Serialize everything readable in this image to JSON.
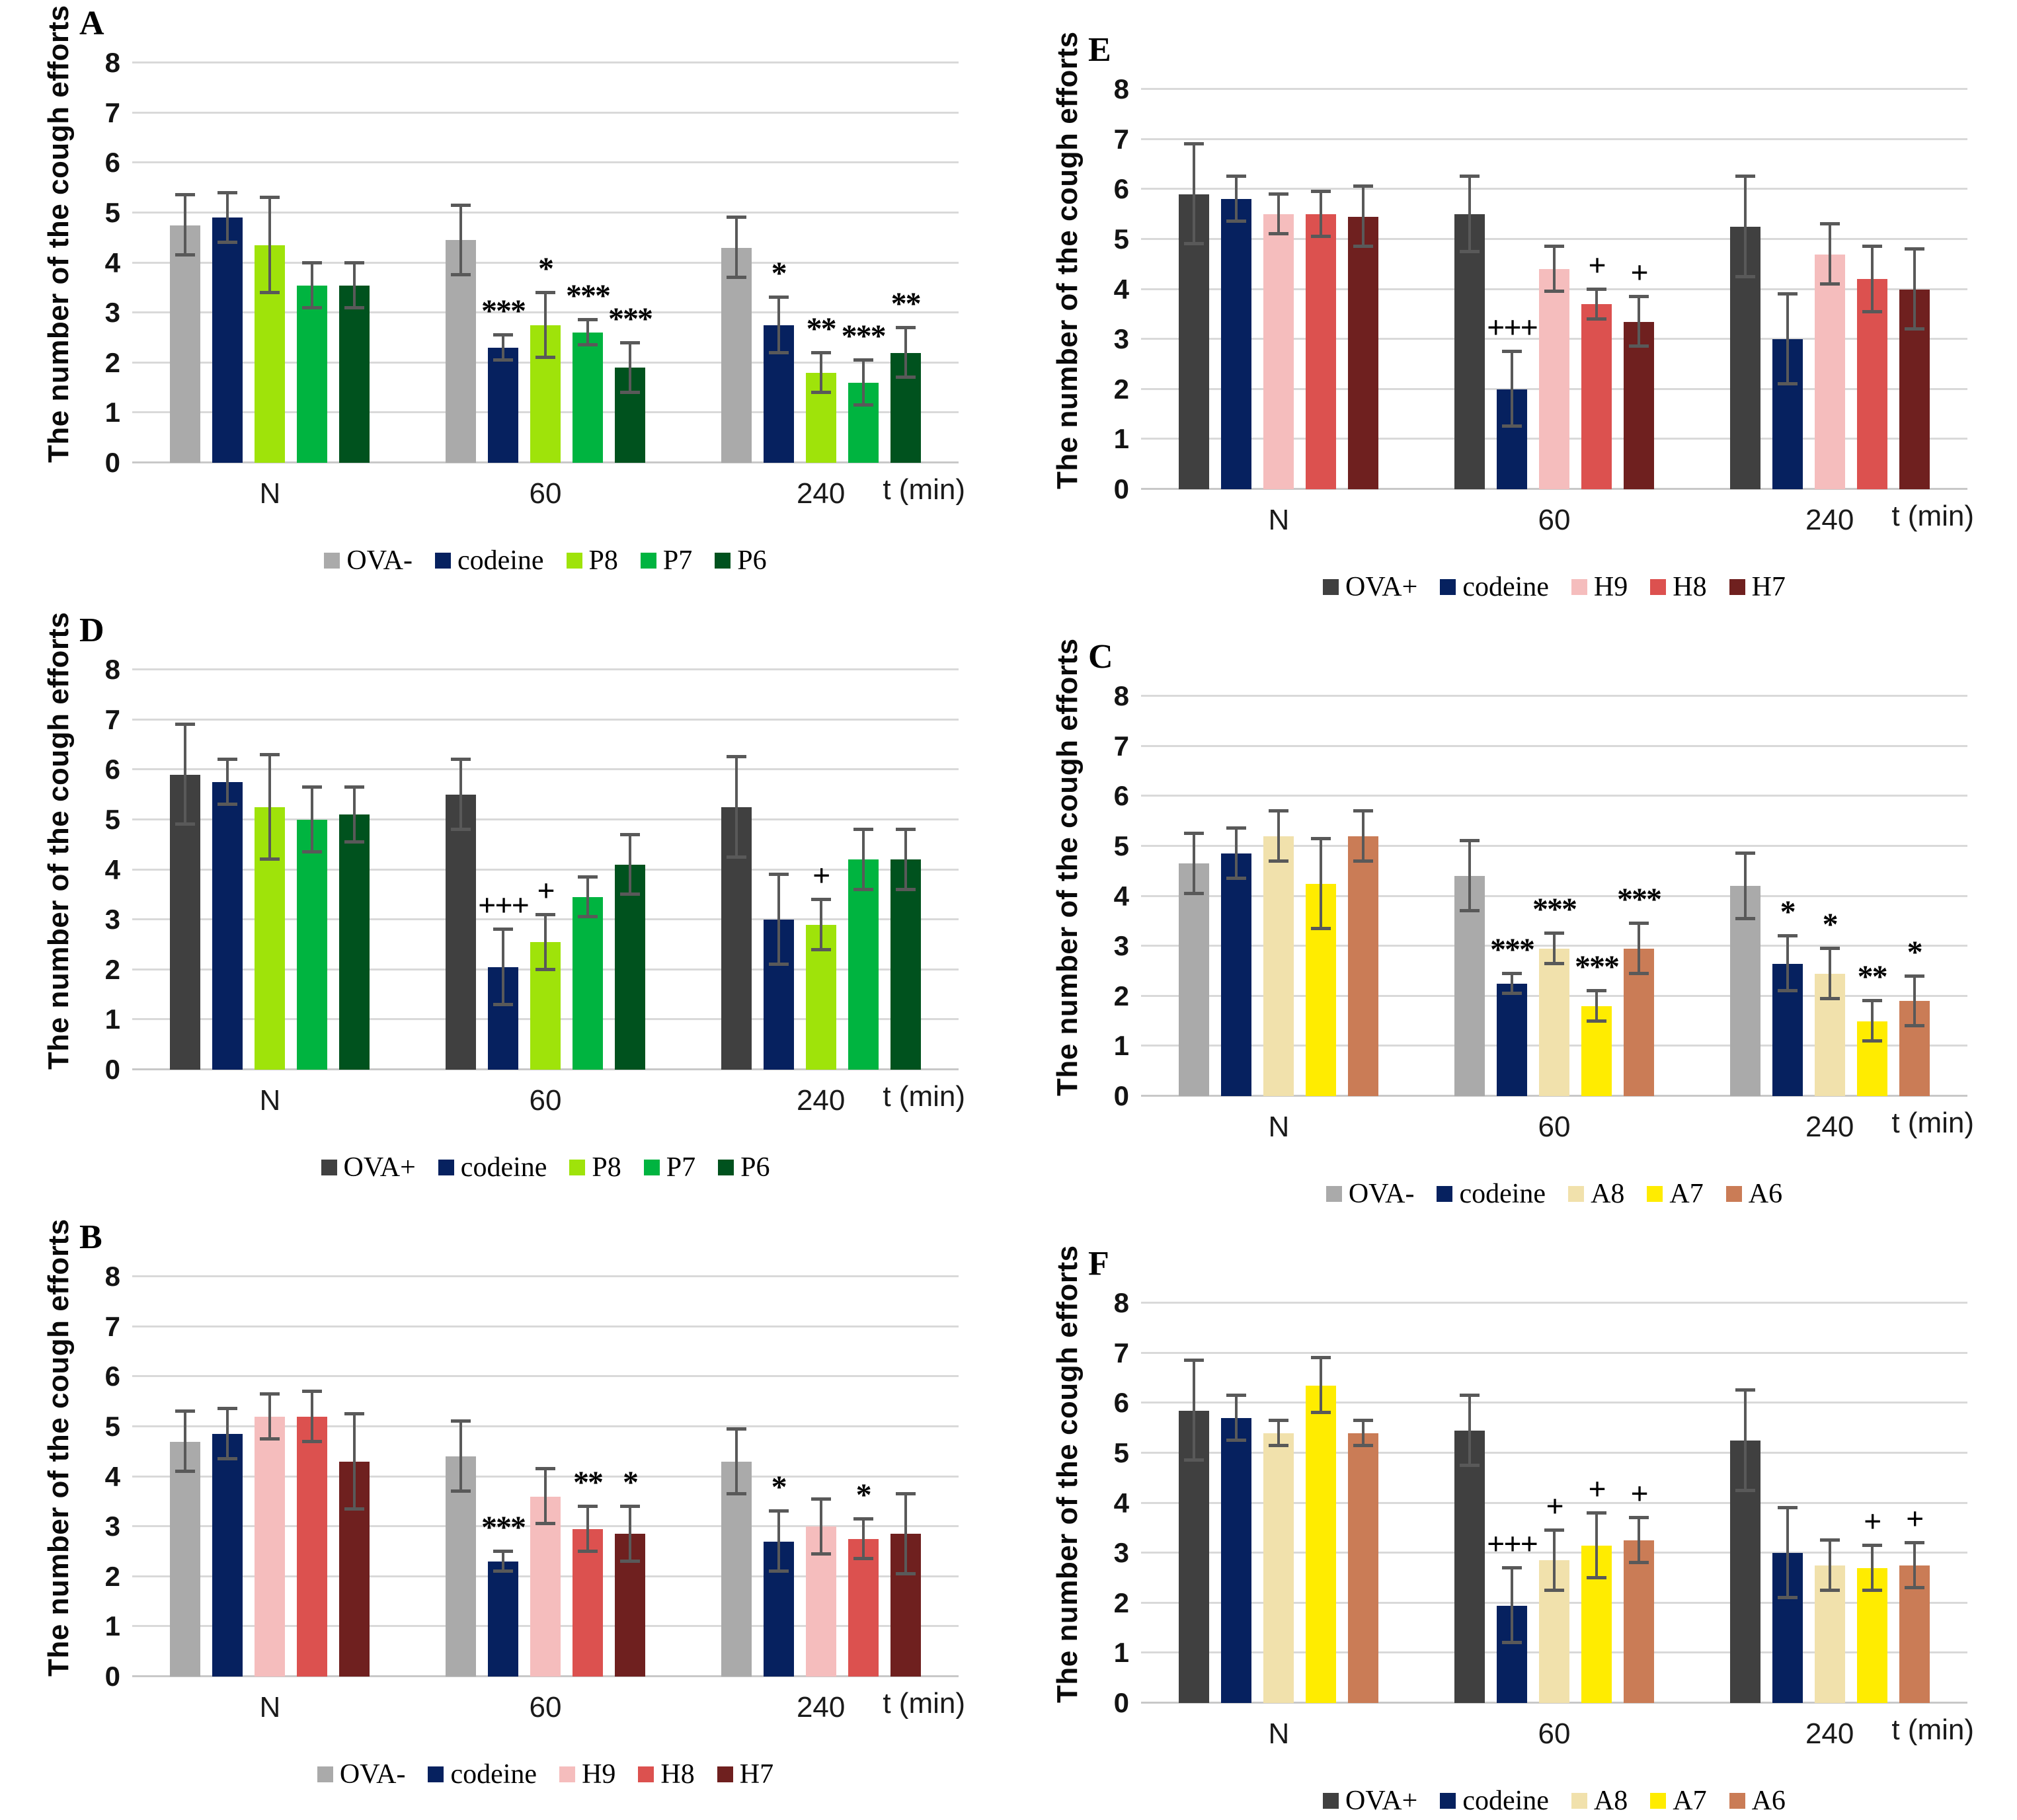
{
  "figure": {
    "ylabel": "The number of the cough efforts",
    "xlabel": "t (min)",
    "categories": [
      "N",
      "60",
      "240"
    ],
    "ylim": [
      0,
      8
    ],
    "grid": true,
    "error_bar_color": "#595959",
    "gridline_color": "#D9D9D9",
    "colors": {
      "OVA-": "#AAAAAA",
      "OVA+": "#404040",
      "codeine": "#06215F",
      "P8": "#9FE30A",
      "P7": "#00B440",
      "P6": "#00521E",
      "H9": "#F5BDBD",
      "H8": "#DC514F",
      "H7": "#6F201F",
      "A8": "#F1E1AC",
      "A7": "#FFEC00",
      "A6": "#CA7C56"
    }
  },
  "chart_data": [
    {
      "type": "bar",
      "label": "A",
      "ylabel": "The number of the cough efforts",
      "xlabel": "t (min)",
      "ylim": [
        0,
        8
      ],
      "categories": [
        "N",
        "60",
        "240"
      ],
      "legend_position": "bottom",
      "series": [
        {
          "name": "OVA-",
          "color": "#AAAAAA",
          "values": [
            4.75,
            4.45,
            4.3
          ],
          "errors": [
            0.6,
            0.7,
            0.6
          ],
          "sig": [
            "",
            "",
            ""
          ]
        },
        {
          "name": "codeine",
          "color": "#06215F",
          "values": [
            4.9,
            2.3,
            2.75
          ],
          "errors": [
            0.5,
            0.25,
            0.55
          ],
          "sig": [
            "",
            "***",
            "*"
          ]
        },
        {
          "name": "P8",
          "color": "#9FE30A",
          "values": [
            4.35,
            2.75,
            1.8
          ],
          "errors": [
            0.95,
            0.65,
            0.4
          ],
          "sig": [
            "",
            "*",
            "**"
          ]
        },
        {
          "name": "P7",
          "color": "#00B440",
          "values": [
            3.55,
            2.6,
            1.6
          ],
          "errors": [
            0.45,
            0.25,
            0.45
          ],
          "sig": [
            "",
            "***",
            "***"
          ]
        },
        {
          "name": "P6",
          "color": "#00521E",
          "values": [
            3.55,
            1.9,
            2.2
          ],
          "errors": [
            0.45,
            0.5,
            0.5
          ],
          "sig": [
            "",
            "***",
            "**"
          ]
        }
      ]
    },
    {
      "type": "bar",
      "label": "B",
      "ylabel": "The number of the cough efforts",
      "xlabel": "t (min)",
      "ylim": [
        0,
        8
      ],
      "categories": [
        "N",
        "60",
        "240"
      ],
      "legend_position": "bottom",
      "series": [
        {
          "name": "OVA-",
          "color": "#AAAAAA",
          "values": [
            4.7,
            4.4,
            4.3
          ],
          "errors": [
            0.6,
            0.7,
            0.65
          ],
          "sig": [
            "",
            "",
            ""
          ]
        },
        {
          "name": "codeine",
          "color": "#06215F",
          "values": [
            4.85,
            2.3,
            2.7
          ],
          "errors": [
            0.5,
            0.2,
            0.6
          ],
          "sig": [
            "",
            "***",
            "*"
          ]
        },
        {
          "name": "H9",
          "color": "#F5BDBD",
          "values": [
            5.2,
            3.6,
            3.0
          ],
          "errors": [
            0.45,
            0.55,
            0.55
          ],
          "sig": [
            "",
            "",
            ""
          ]
        },
        {
          "name": "H8",
          "color": "#DC514F",
          "values": [
            5.2,
            2.95,
            2.75
          ],
          "errors": [
            0.5,
            0.45,
            0.4
          ],
          "sig": [
            "",
            "**",
            "*"
          ]
        },
        {
          "name": "H7",
          "color": "#6F201F",
          "values": [
            4.3,
            2.85,
            2.85
          ],
          "errors": [
            0.95,
            0.55,
            0.8
          ],
          "sig": [
            "",
            "*",
            ""
          ]
        }
      ]
    },
    {
      "type": "bar",
      "label": "C",
      "ylabel": "The number of the cough efforts",
      "xlabel": "t (min)",
      "ylim": [
        0,
        8
      ],
      "categories": [
        "N",
        "60",
        "240"
      ],
      "legend_position": "bottom",
      "series": [
        {
          "name": "OVA-",
          "color": "#AAAAAA",
          "values": [
            4.65,
            4.4,
            4.2
          ],
          "errors": [
            0.6,
            0.7,
            0.65
          ],
          "sig": [
            "",
            "",
            ""
          ]
        },
        {
          "name": "codeine",
          "color": "#06215F",
          "values": [
            4.85,
            2.25,
            2.65
          ],
          "errors": [
            0.5,
            0.2,
            0.55
          ],
          "sig": [
            "",
            "***",
            "*"
          ]
        },
        {
          "name": "A8",
          "color": "#F1E1AC",
          "values": [
            5.2,
            2.95,
            2.45
          ],
          "errors": [
            0.5,
            0.3,
            0.5
          ],
          "sig": [
            "",
            "***",
            "*"
          ]
        },
        {
          "name": "A7",
          "color": "#FFEC00",
          "values": [
            4.25,
            1.8,
            1.5
          ],
          "errors": [
            0.9,
            0.3,
            0.4
          ],
          "sig": [
            "",
            "***",
            "**"
          ]
        },
        {
          "name": "A6",
          "color": "#CA7C56",
          "values": [
            5.2,
            2.95,
            1.9
          ],
          "errors": [
            0.5,
            0.5,
            0.5
          ],
          "sig": [
            "",
            "***",
            "*"
          ]
        }
      ]
    },
    {
      "type": "bar",
      "label": "D",
      "ylabel": "The number of the cough efforts",
      "xlabel": "t (min)",
      "ylim": [
        0,
        8
      ],
      "categories": [
        "N",
        "60",
        "240"
      ],
      "legend_position": "bottom",
      "series": [
        {
          "name": "OVA+",
          "color": "#404040",
          "values": [
            5.9,
            5.5,
            5.25
          ],
          "errors": [
            1.0,
            0.7,
            1.0
          ],
          "sig": [
            "",
            "",
            ""
          ]
        },
        {
          "name": "codeine",
          "color": "#06215F",
          "values": [
            5.75,
            2.05,
            3.0
          ],
          "errors": [
            0.45,
            0.75,
            0.9
          ],
          "sig": [
            "",
            "+++",
            ""
          ]
        },
        {
          "name": "P8",
          "color": "#9FE30A",
          "values": [
            5.25,
            2.55,
            2.9
          ],
          "errors": [
            1.05,
            0.55,
            0.5
          ],
          "sig": [
            "",
            "+",
            "+"
          ]
        },
        {
          "name": "P7",
          "color": "#00B440",
          "values": [
            5.0,
            3.45,
            4.2
          ],
          "errors": [
            0.65,
            0.4,
            0.6
          ],
          "sig": [
            "",
            "",
            ""
          ]
        },
        {
          "name": "P6",
          "color": "#00521E",
          "values": [
            5.1,
            4.1,
            4.2
          ],
          "errors": [
            0.55,
            0.6,
            0.6
          ],
          "sig": [
            "",
            "",
            ""
          ]
        }
      ]
    },
    {
      "type": "bar",
      "label": "E",
      "ylabel": "The number of the cough efforts",
      "xlabel": "t (min)",
      "ylim": [
        0,
        8
      ],
      "categories": [
        "N",
        "60",
        "240"
      ],
      "legend_position": "bottom",
      "series": [
        {
          "name": "OVA+",
          "color": "#404040",
          "values": [
            5.9,
            5.5,
            5.25
          ],
          "errors": [
            1.0,
            0.75,
            1.0
          ],
          "sig": [
            "",
            "",
            ""
          ]
        },
        {
          "name": "codeine",
          "color": "#06215F",
          "values": [
            5.8,
            2.0,
            3.0
          ],
          "errors": [
            0.45,
            0.75,
            0.9
          ],
          "sig": [
            "",
            "+++",
            ""
          ]
        },
        {
          "name": "H9",
          "color": "#F5BDBD",
          "values": [
            5.5,
            4.4,
            4.7
          ],
          "errors": [
            0.4,
            0.45,
            0.6
          ],
          "sig": [
            "",
            "",
            ""
          ]
        },
        {
          "name": "H8",
          "color": "#DC514F",
          "values": [
            5.5,
            3.7,
            4.2
          ],
          "errors": [
            0.45,
            0.3,
            0.65
          ],
          "sig": [
            "",
            "+",
            ""
          ]
        },
        {
          "name": "H7",
          "color": "#6F201F",
          "values": [
            5.45,
            3.35,
            4.0
          ],
          "errors": [
            0.6,
            0.5,
            0.8
          ],
          "sig": [
            "",
            "+",
            ""
          ]
        }
      ]
    },
    {
      "type": "bar",
      "label": "F",
      "ylabel": "The number of the cough efforts",
      "xlabel": "t (min)",
      "ylim": [
        0,
        8
      ],
      "categories": [
        "N",
        "60",
        "240"
      ],
      "legend_position": "bottom",
      "series": [
        {
          "name": "OVA+",
          "color": "#404040",
          "values": [
            5.85,
            5.45,
            5.25
          ],
          "errors": [
            1.0,
            0.7,
            1.0
          ],
          "sig": [
            "",
            "",
            ""
          ]
        },
        {
          "name": "codeine",
          "color": "#06215F",
          "values": [
            5.7,
            1.95,
            3.0
          ],
          "errors": [
            0.45,
            0.75,
            0.9
          ],
          "sig": [
            "",
            "+++",
            ""
          ]
        },
        {
          "name": "A8",
          "color": "#F1E1AC",
          "values": [
            5.4,
            2.85,
            2.75
          ],
          "errors": [
            0.25,
            0.6,
            0.5
          ],
          "sig": [
            "",
            "+",
            ""
          ]
        },
        {
          "name": "A7",
          "color": "#FFEC00",
          "values": [
            6.35,
            3.15,
            2.7
          ],
          "errors": [
            0.55,
            0.65,
            0.45
          ],
          "sig": [
            "",
            "+",
            "+"
          ]
        },
        {
          "name": "A6",
          "color": "#CA7C56",
          "values": [
            5.4,
            3.25,
            2.75
          ],
          "errors": [
            0.25,
            0.45,
            0.45
          ],
          "sig": [
            "",
            "+",
            "+"
          ]
        }
      ]
    }
  ]
}
